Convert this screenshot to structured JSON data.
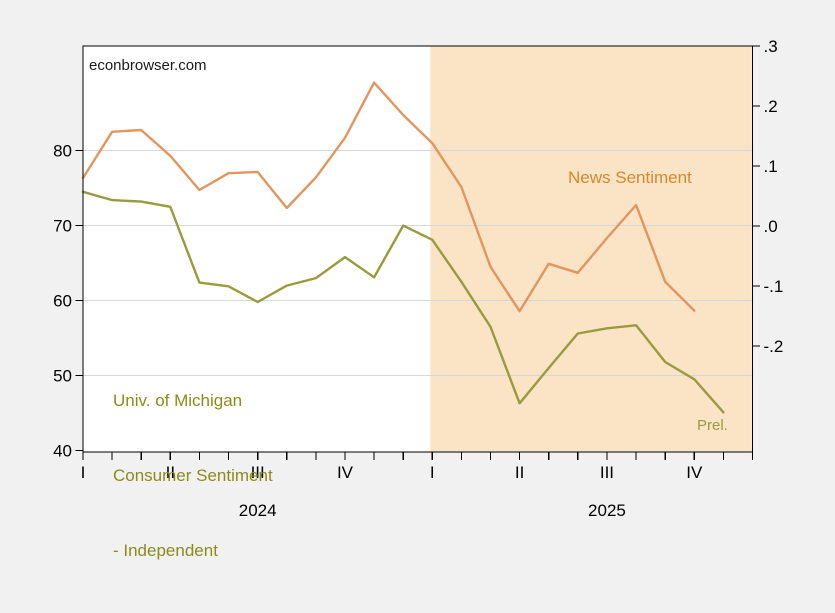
{
  "watermark": "econbrowser.com",
  "annotations": {
    "news_sentiment_label": "News Sentiment",
    "umich_label_line1": "Univ. of Michigan",
    "umich_label_line2": "Consumer Sentiment",
    "umich_label_line3": "- Independent",
    "prel_label": "Prel."
  },
  "colors": {
    "page_background": "#f1f1f1",
    "plot_background": "#ffffff",
    "shading": "#fbe3c5",
    "gridline": "#d5d7da",
    "frame": "#000000",
    "umich_line": "#9a9a3f",
    "umich_text": "#8b8b1b",
    "news_line": "#e2965f",
    "news_text": "#d5892d"
  },
  "chart_data": {
    "type": "line",
    "title": "",
    "x_months": [
      "2024M01",
      "2024M02",
      "2024M03",
      "2024M04",
      "2024M05",
      "2024M06",
      "2024M07",
      "2024M08",
      "2024M09",
      "2024M10",
      "2024M11",
      "2024M12",
      "2025M01",
      "2025M02",
      "2025M03",
      "2025M04",
      "2025M05",
      "2025M06",
      "2025M07",
      "2025M08",
      "2025M09",
      "2025M10",
      "2025M11",
      "2025M12"
    ],
    "series": [
      {
        "name": "Univ. of Michigan Consumer Sentiment - Independent",
        "axis": "left",
        "color": "#9a9a3f",
        "values": [
          74.5,
          73.4,
          73.2,
          72.5,
          62.4,
          61.9,
          59.8,
          62.0,
          63.0,
          65.8,
          63.1,
          70.0,
          68.1,
          62.5,
          56.5,
          46.3,
          51.0,
          55.6,
          56.3,
          56.7,
          51.8,
          49.5,
          45.1,
          null
        ]
      },
      {
        "name": "News Sentiment",
        "axis": "right",
        "color": "#e2965f",
        "values": [
          0.08,
          0.157,
          0.16,
          0.117,
          0.06,
          0.088,
          0.09,
          0.03,
          0.081,
          0.147,
          0.239,
          0.185,
          0.138,
          0.065,
          -0.068,
          -0.142,
          -0.063,
          -0.078,
          -0.02,
          0.035,
          -0.093,
          -0.141,
          null,
          null
        ]
      }
    ],
    "left_axis": {
      "ticks": [
        80,
        70,
        60,
        50,
        40
      ],
      "min": 39.8,
      "max": 93.95,
      "gridlines": [
        80,
        70,
        60,
        50
      ]
    },
    "right_axis": {
      "tick_values": [
        0.3,
        0.2,
        0.1,
        0.0,
        -0.1,
        -0.2
      ],
      "tick_labels": [
        ".3",
        ".2",
        ".1",
        ".0",
        "-.1",
        "-.2"
      ],
      "min": -0.3767,
      "max": 0.3
    },
    "x_axis": {
      "quarter_positions": [
        0,
        3,
        6,
        9,
        12,
        15,
        18,
        21
      ],
      "quarter_labels": [
        "I",
        "II",
        "III",
        "IV",
        "I",
        "II",
        "III",
        "IV"
      ],
      "year_positions": [
        6,
        18
      ],
      "year_labels": [
        "2024",
        "2025"
      ]
    },
    "shaded_region": {
      "start_month_index": 12,
      "end_month_index": 23,
      "color": "#fbe3c5"
    },
    "legend_position": "in-plot text labels",
    "grid": "horizontal only"
  }
}
